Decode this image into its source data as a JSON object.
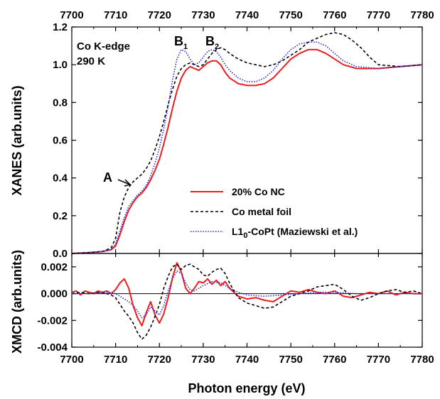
{
  "chart_data": [
    {
      "type": "line",
      "panel": "top",
      "ylabel": "XANES (arb.units)",
      "xlabel": "",
      "xlim": [
        7700,
        7780
      ],
      "ylim": [
        0,
        1.2
      ],
      "xticks": [
        7700,
        7710,
        7720,
        7730,
        7740,
        7750,
        7760,
        7770,
        7780
      ],
      "xtick_labels": [
        "7700",
        "7710",
        "7720",
        "7730",
        "7740",
        "7750",
        "7760",
        "7770",
        "7780"
      ],
      "yticks": [
        0,
        0.2,
        0.4,
        0.6,
        0.8,
        1.0,
        1.2
      ],
      "ytick_labels": [
        "0.0",
        "0.2",
        "0.4",
        "0.6",
        "0.8",
        "1.0",
        "1.2"
      ],
      "annotation_lines": [
        "Co K-edge",
        "290 K"
      ],
      "peak_labels": {
        "a": "A",
        "b1_main": "B",
        "b1_sub": "1",
        "b2_main": "B",
        "b2_sub": "2"
      },
      "legend": {
        "placement": "lower-right",
        "entries": [
          {
            "label": "20% Co NC",
            "color": "#ee1c1c",
            "style": "solid"
          },
          {
            "label": "Co metal foil",
            "color": "#000000",
            "style": "dashed"
          },
          {
            "label_main": "L1",
            "label_sub": "0",
            "label_rest": "-CoPt (Maziewski et al.)",
            "color": "#2a2ae6",
            "style": "dotted"
          }
        ]
      },
      "series": [
        {
          "color": "#ee1c1c",
          "style": "solid",
          "x": [
            7700,
            7704,
            7707,
            7709,
            7710,
            7711,
            7712,
            7713,
            7714,
            7715,
            7716,
            7717,
            7718,
            7719,
            7720,
            7721,
            7722,
            7723,
            7724,
            7725,
            7726,
            7727,
            7728,
            7729,
            7730,
            7731,
            7732,
            7733,
            7734,
            7735,
            7736,
            7738,
            7740,
            7742,
            7744,
            7746,
            7748,
            7750,
            7752,
            7754,
            7756,
            7758,
            7760,
            7762,
            7765,
            7770,
            7775,
            7780
          ],
          "y": [
            0.0,
            0.005,
            0.01,
            0.02,
            0.04,
            0.1,
            0.17,
            0.23,
            0.27,
            0.3,
            0.32,
            0.35,
            0.39,
            0.44,
            0.5,
            0.58,
            0.67,
            0.77,
            0.86,
            0.93,
            0.97,
            0.99,
            0.98,
            0.97,
            0.99,
            1.01,
            1.02,
            1.02,
            1.0,
            0.96,
            0.93,
            0.9,
            0.89,
            0.89,
            0.9,
            0.93,
            0.98,
            1.03,
            1.06,
            1.08,
            1.08,
            1.06,
            1.03,
            1.0,
            0.98,
            0.98,
            0.99,
            1.0
          ]
        },
        {
          "color": "#000000",
          "style": "dashed",
          "x": [
            7700,
            7704,
            7707,
            7709,
            7710,
            7711,
            7712,
            7713,
            7714,
            7715,
            7716,
            7717,
            7718,
            7719,
            7720,
            7721,
            7722,
            7723,
            7724,
            7725,
            7726,
            7727,
            7728,
            7729,
            7730,
            7731,
            7732,
            7733,
            7734,
            7735,
            7736,
            7738,
            7740,
            7742,
            7744,
            7746,
            7748,
            7750,
            7752,
            7754,
            7756,
            7758,
            7760,
            7762,
            7764,
            7766,
            7768,
            7770,
            7775,
            7780
          ],
          "y": [
            0.0,
            0.005,
            0.01,
            0.03,
            0.08,
            0.22,
            0.3,
            0.35,
            0.38,
            0.4,
            0.42,
            0.45,
            0.49,
            0.55,
            0.62,
            0.7,
            0.79,
            0.87,
            0.94,
            0.98,
            1.0,
            1.01,
            1.0,
            0.99,
            1.0,
            1.03,
            1.06,
            1.08,
            1.09,
            1.08,
            1.06,
            1.03,
            1.01,
            1.0,
            0.99,
            1.0,
            1.02,
            1.05,
            1.08,
            1.12,
            1.14,
            1.16,
            1.17,
            1.16,
            1.13,
            1.09,
            1.04,
            1.0,
            0.99,
            1.0
          ]
        },
        {
          "color": "#2a2ae6",
          "style": "dotted",
          "x": [
            7700,
            7704,
            7707,
            7709,
            7710,
            7711,
            7712,
            7713,
            7714,
            7715,
            7716,
            7717,
            7718,
            7719,
            7720,
            7721,
            7722,
            7723,
            7724,
            7725,
            7726,
            7727,
            7728,
            7729,
            7730,
            7731,
            7732,
            7733,
            7734,
            7735,
            7736,
            7738,
            7740,
            7742,
            7744,
            7746,
            7748,
            7750,
            7752,
            7754,
            7756,
            7758,
            7760,
            7762,
            7765,
            7770,
            7775,
            7780
          ],
          "y": [
            0.0,
            0.005,
            0.01,
            0.02,
            0.05,
            0.12,
            0.19,
            0.25,
            0.28,
            0.31,
            0.33,
            0.36,
            0.41,
            0.48,
            0.56,
            0.66,
            0.78,
            0.92,
            1.03,
            1.08,
            1.07,
            1.03,
            1.0,
            1.01,
            1.04,
            1.07,
            1.08,
            1.07,
            1.04,
            1.0,
            0.97,
            0.93,
            0.91,
            0.91,
            0.93,
            0.97,
            1.03,
            1.08,
            1.11,
            1.12,
            1.12,
            1.1,
            1.06,
            1.02,
            0.99,
            0.98,
            0.99,
            1.0
          ]
        }
      ]
    },
    {
      "type": "line",
      "panel": "bottom",
      "ylabel": "XMCD (arb.units)",
      "xlabel": "Photon energy (eV)",
      "xlim": [
        7700,
        7780
      ],
      "ylim": [
        -0.004,
        0.003
      ],
      "xticks": [
        7700,
        7710,
        7720,
        7730,
        7740,
        7750,
        7760,
        7770,
        7780
      ],
      "xtick_labels": [
        "7700",
        "7710",
        "7720",
        "7730",
        "7740",
        "7750",
        "7760",
        "7770",
        "7780"
      ],
      "yticks": [
        -0.004,
        -0.002,
        0.0,
        0.002
      ],
      "ytick_labels": [
        "-0.004",
        "-0.002",
        "0.000",
        "0.002"
      ],
      "zero_line": true,
      "series": [
        {
          "color": "#ee1c1c",
          "style": "solid",
          "x": [
            7700,
            7701,
            7702,
            7703,
            7704,
            7705,
            7706,
            7707,
            7708,
            7709,
            7710,
            7711,
            7712,
            7713,
            7714,
            7715,
            7716,
            7717,
            7718,
            7719,
            7720,
            7721,
            7722,
            7723,
            7724,
            7725,
            7726,
            7727,
            7728,
            7729,
            7730,
            7731,
            7732,
            7733,
            7734,
            7735,
            7736,
            7737,
            7738,
            7740,
            7742,
            7744,
            7746,
            7748,
            7750,
            7752,
            7754,
            7756,
            7758,
            7760,
            7762,
            7764,
            7766,
            7768,
            7770,
            7772,
            7774,
            7776,
            7778,
            7780
          ],
          "y": [
            0.0001,
            0.0002,
            -0.0001,
            0.0002,
            0.0001,
            0.0,
            0.0002,
            0.0001,
            0.0002,
            0.0,
            0.0003,
            0.0008,
            0.0011,
            0.0004,
            -0.0009,
            -0.0018,
            -0.0024,
            -0.0014,
            -0.0006,
            -0.0016,
            -0.0022,
            -0.0015,
            -0.0003,
            0.0012,
            0.0023,
            0.0016,
            0.0004,
            0.0,
            0.0004,
            0.0009,
            0.0008,
            0.0011,
            0.0007,
            0.001,
            0.0006,
            0.0009,
            0.0004,
            0.0001,
            -0.0002,
            -0.0004,
            -0.0003,
            -0.0005,
            -0.0006,
            -0.0002,
            0.0002,
            0.0001,
            0.0003,
            0.0001,
            0.0,
            0.0002,
            -0.0002,
            -0.0003,
            -0.0001,
            0.0001,
            0.0,
            0.0002,
            -0.0001,
            0.0001,
            0.0,
            0.0
          ]
        },
        {
          "color": "#000000",
          "style": "dashed",
          "x": [
            7700,
            7702,
            7704,
            7706,
            7708,
            7709,
            7710,
            7711,
            7712,
            7713,
            7714,
            7715,
            7716,
            7717,
            7718,
            7719,
            7720,
            7721,
            7722,
            7723,
            7724,
            7725,
            7726,
            7727,
            7728,
            7729,
            7730,
            7731,
            7732,
            7733,
            7734,
            7735,
            7736,
            7737,
            7738,
            7740,
            7742,
            7744,
            7746,
            7748,
            7750,
            7752,
            7754,
            7756,
            7758,
            7760,
            7762,
            7764,
            7766,
            7768,
            7770,
            7772,
            7774,
            7776,
            7778,
            7780
          ],
          "y": [
            0.0,
            0.0001,
            0.0,
            0.0001,
            0.0,
            -0.0001,
            -0.0003,
            -0.0008,
            -0.0013,
            -0.0017,
            -0.0022,
            -0.0029,
            -0.0034,
            -0.0031,
            -0.0025,
            -0.0017,
            -0.0008,
            0.0004,
            0.0013,
            0.002,
            0.0022,
            0.0018,
            0.0021,
            0.0022,
            0.002,
            0.0018,
            0.0014,
            0.0013,
            0.0016,
            0.0018,
            0.0019,
            0.0015,
            0.0008,
            0.0002,
            -0.0003,
            -0.0007,
            -0.0009,
            -0.0011,
            -0.001,
            -0.0006,
            -0.0002,
            0.0,
            0.0002,
            0.0005,
            0.0006,
            0.0007,
            0.0003,
            -0.0002,
            -0.0005,
            -0.0003,
            0.0,
            0.0002,
            0.0003,
            0.0001,
            0.0002,
            0.0
          ]
        },
        {
          "color": "#2a2ae6",
          "style": "dotted",
          "x": [
            7700,
            7705,
            7708,
            7710,
            7711,
            7712,
            7713,
            7714,
            7715,
            7716,
            7717,
            7718,
            7719,
            7720,
            7721,
            7722,
            7723,
            7724,
            7725,
            7726,
            7727,
            7728,
            7730,
            7732,
            7734,
            7736,
            7738,
            7740,
            7744,
            7748,
            7752,
            7756,
            7760,
            7765,
            7770,
            7775,
            7780
          ],
          "y": [
            0.0,
            0.0,
            0.0001,
            0.0,
            -0.0002,
            -0.0004,
            -0.0006,
            -0.0009,
            -0.0013,
            -0.0018,
            -0.0016,
            -0.001,
            -0.0013,
            -0.0016,
            -0.0009,
            0.0002,
            0.0011,
            0.0017,
            0.0015,
            0.0008,
            0.0003,
            0.0002,
            0.0006,
            0.0009,
            0.0008,
            0.0004,
            0.0001,
            -0.0001,
            -0.0002,
            -0.0001,
            0.0,
            0.0001,
            0.0001,
            0.0,
            0.0,
            0.0,
            0.0
          ]
        }
      ]
    }
  ]
}
